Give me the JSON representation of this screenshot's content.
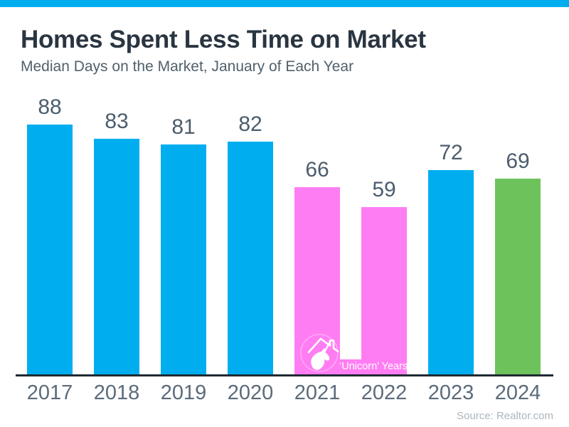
{
  "header": {
    "title": "Homes Spent Less Time on Market",
    "subtitle": "Median Days on the Market, January of Each Year",
    "accent_color": "#00AEEF"
  },
  "chart_data": {
    "type": "bar",
    "title": "Homes Spent Less Time on Market",
    "subtitle": "Median Days on the Market, January of Each Year",
    "categories": [
      "2017",
      "2018",
      "2019",
      "2020",
      "2021",
      "2022",
      "2023",
      "2024"
    ],
    "values": [
      88,
      83,
      81,
      82,
      66,
      59,
      72,
      69
    ],
    "bar_colors": [
      "#00AEEF",
      "#00AEEF",
      "#00AEEF",
      "#00AEEF",
      "#FF7DF3",
      "#FF7DF3",
      "#00AEEF",
      "#6DC25B"
    ],
    "ylim": [
      0,
      100
    ],
    "gridlines": false,
    "legend": false,
    "value_labels_shown": true,
    "colors": {
      "blue": "#00AEEF",
      "pink": "#FF7DF3",
      "green": "#6DC25B"
    },
    "annotation": {
      "label": "‘Unicorn’ Years",
      "applies_to": [
        "2021",
        "2022"
      ],
      "icon": "unicorn-house-icon",
      "text_color": "#FFFFFF"
    }
  },
  "footer": {
    "source": "Source: Realtor.com"
  }
}
